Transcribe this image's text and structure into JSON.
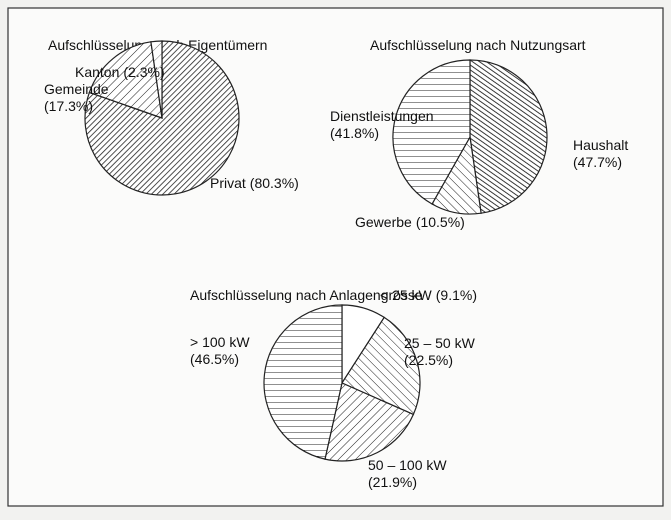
{
  "chart_data": [
    {
      "type": "pie",
      "title": "Aufschlüsselung nach Eigentümern",
      "categories": [
        "Privat",
        "Gemeinde",
        "Kanton"
      ],
      "values": [
        80.3,
        17.3,
        2.3
      ],
      "value_labels": [
        "(80.3%)",
        "(17.3%)",
        "(2.3%)"
      ]
    },
    {
      "type": "pie",
      "title": "Aufschlüsselung nach Nutzungsart",
      "categories": [
        "Haushalt",
        "Gewerbe",
        "Dienstleistungen"
      ],
      "values": [
        47.7,
        10.5,
        41.8
      ],
      "value_labels": [
        "(47.7%)",
        "(10.5%)",
        "(41.8%)"
      ]
    },
    {
      "type": "pie",
      "title": "Aufschlüsselung nach Anlagengrösse",
      "categories": [
        "< 25 kW",
        "25 – 50 kW",
        "50 – 100 kW",
        "> 100 kW"
      ],
      "values": [
        9.1,
        22.5,
        21.9,
        46.5
      ],
      "value_labels": [
        "(9.1%)",
        "(22.5%)",
        "(21.9%)",
        "(46.5%)"
      ]
    }
  ]
}
